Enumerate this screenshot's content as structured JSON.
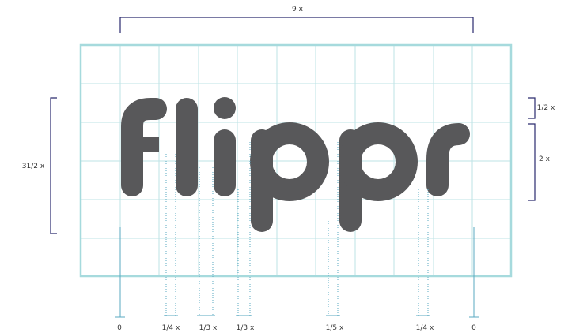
{
  "logo": {
    "text": "flippr",
    "color": "#58585a"
  },
  "colors": {
    "grid": "#bde3e6",
    "frame": "#a6dadd",
    "bracket": "#2a2a6e",
    "guide": "#5aa9c2",
    "label": "#333333"
  },
  "dimensions": {
    "top_width": "9 x",
    "left_height": "31/2 x",
    "right_top": "1/2 x",
    "right_bottom": "2 x"
  },
  "bottom_labels": [
    "0",
    "1/4 x",
    "1/3 x",
    "1/3 x",
    "1/5 x",
    "1/4 x",
    "0"
  ]
}
